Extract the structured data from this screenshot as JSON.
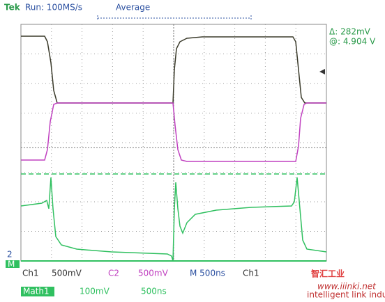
{
  "header": {
    "brand": "Tek",
    "run": "Run: 100MS/s",
    "mode": "Average"
  },
  "readout": {
    "delta": "Δ: 282mV",
    "at": "@: 4.904 V"
  },
  "markers": {
    "ch2": "2",
    "math": "M"
  },
  "footer": {
    "ch1": "Ch1",
    "ch1_scale": "500mV",
    "ch2": "C2",
    "ch2_scale": "500mV",
    "time": "M 500ns",
    "trigger": "Ch1",
    "math": "Math1",
    "math_scale": "100mV",
    "math_time": "500ns"
  },
  "watermark": {
    "title": "智汇工业",
    "site": "www.iiinki.net",
    "tagline": "intelligent link industry"
  }
}
